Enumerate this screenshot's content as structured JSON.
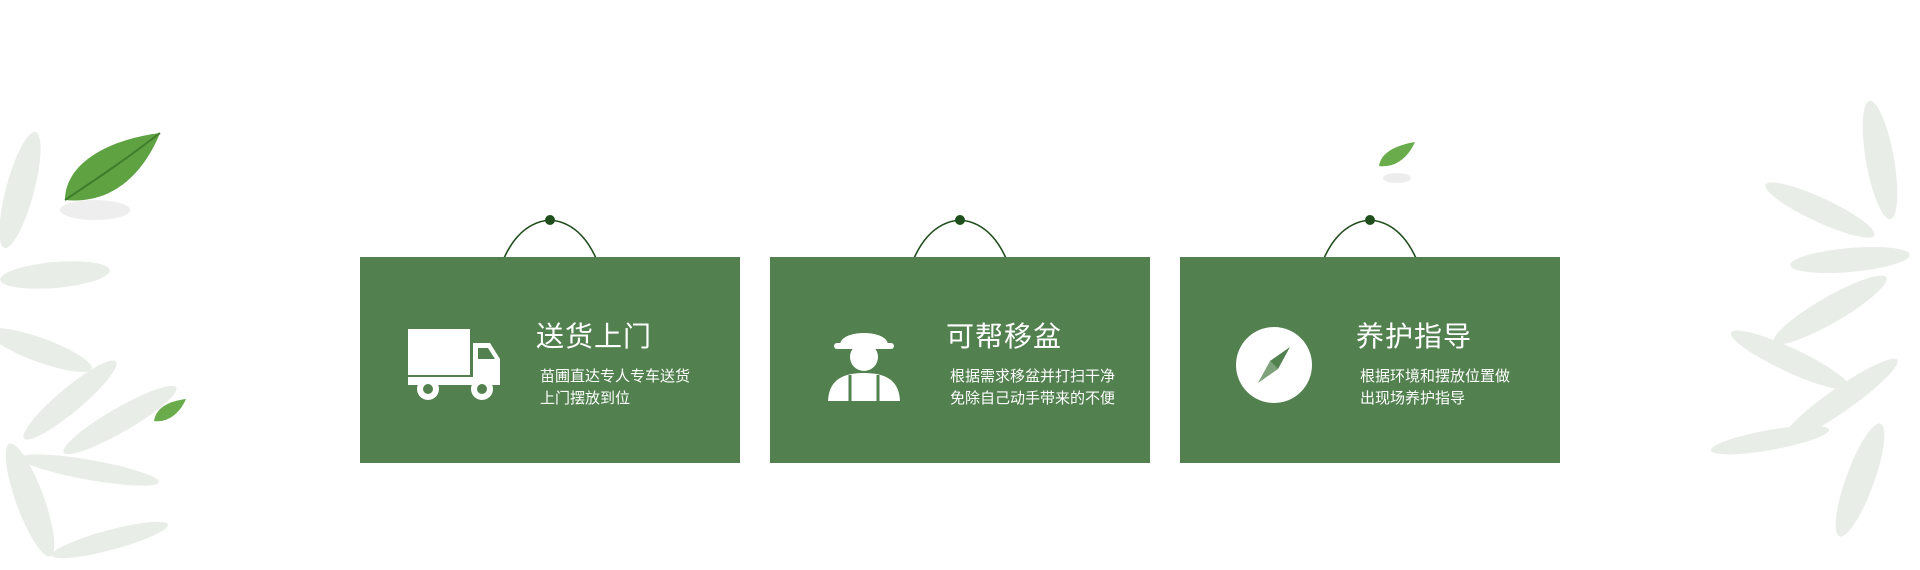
{
  "colors": {
    "card": "#52814f",
    "hanger": "#1f4d1c",
    "text": "#ffffff"
  },
  "cards": [
    {
      "icon": "truck-icon",
      "title": "送货上门",
      "desc_lines": [
        "苗圃直达专人专车送货",
        "上门摆放到位"
      ]
    },
    {
      "icon": "worker-icon",
      "title": "可帮移盆",
      "desc_lines": [
        "根据需求移盆并打扫干净",
        "免除自己动手带来的不便"
      ]
    },
    {
      "icon": "compass-icon",
      "title": "养护指导",
      "desc_lines": [
        "根据环境和摆放位置做",
        "出现场养护指导"
      ]
    }
  ]
}
